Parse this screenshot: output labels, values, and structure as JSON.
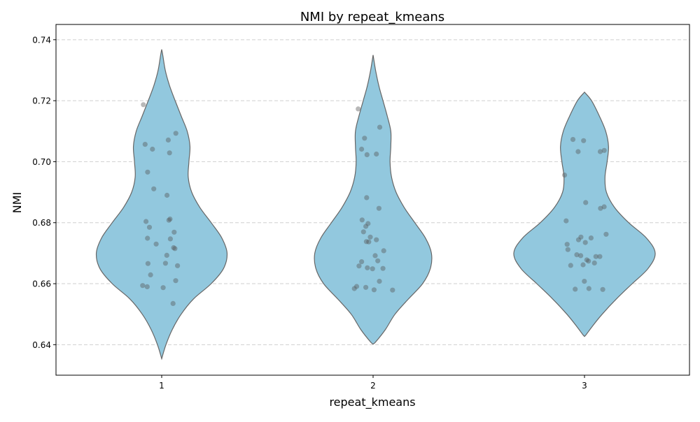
{
  "chart_data": {
    "type": "violin",
    "title": "NMI by repeat_kmeans",
    "xlabel": "repeat_kmeans",
    "ylabel": "NMI",
    "categories": [
      "1",
      "2",
      "3"
    ],
    "ylim": [
      0.63,
      0.745
    ],
    "yticks": [
      "0.64",
      "0.66",
      "0.68",
      "0.70",
      "0.72",
      "0.74"
    ],
    "grid": "horizontal dashed",
    "violin_color": "#92c8de",
    "violin_edge": "#666666",
    "point_color": "#555555",
    "violins": [
      {
        "category": "1",
        "range": [
          0.6354,
          0.7368
        ],
        "profile": [
          [
            0.6354,
            0.0
          ],
          [
            0.64,
            0.012
          ],
          [
            0.645,
            0.03
          ],
          [
            0.65,
            0.055
          ],
          [
            0.655,
            0.09
          ],
          [
            0.66,
            0.14
          ],
          [
            0.665,
            0.175
          ],
          [
            0.67,
            0.185
          ],
          [
            0.675,
            0.17
          ],
          [
            0.68,
            0.14
          ],
          [
            0.685,
            0.108
          ],
          [
            0.69,
            0.085
          ],
          [
            0.695,
            0.075
          ],
          [
            0.7,
            0.077
          ],
          [
            0.705,
            0.08
          ],
          [
            0.71,
            0.072
          ],
          [
            0.715,
            0.055
          ],
          [
            0.72,
            0.038
          ],
          [
            0.725,
            0.022
          ],
          [
            0.73,
            0.01
          ],
          [
            0.735,
            0.003
          ],
          [
            0.7368,
            0.0
          ]
        ],
        "points": [
          0.7187,
          0.7093,
          0.7071,
          0.7057,
          0.7041,
          0.7029,
          0.6966,
          0.6911,
          0.689,
          0.6812,
          0.6808,
          0.6804,
          0.6785,
          0.6769,
          0.6749,
          0.6747,
          0.673,
          0.6718,
          0.6715,
          0.6693,
          0.6667,
          0.6666,
          0.6659,
          0.6629,
          0.661,
          0.6594,
          0.659,
          0.6587,
          0.6535
        ]
      },
      {
        "category": "2",
        "range": [
          0.6402,
          0.735
        ],
        "profile": [
          [
            0.6402,
            0.0
          ],
          [
            0.641,
            0.008
          ],
          [
            0.645,
            0.035
          ],
          [
            0.65,
            0.062
          ],
          [
            0.655,
            0.1
          ],
          [
            0.66,
            0.14
          ],
          [
            0.665,
            0.162
          ],
          [
            0.67,
            0.165
          ],
          [
            0.675,
            0.148
          ],
          [
            0.68,
            0.118
          ],
          [
            0.685,
            0.088
          ],
          [
            0.69,
            0.065
          ],
          [
            0.695,
            0.052
          ],
          [
            0.7,
            0.048
          ],
          [
            0.705,
            0.05
          ],
          [
            0.71,
            0.05
          ],
          [
            0.715,
            0.04
          ],
          [
            0.72,
            0.028
          ],
          [
            0.725,
            0.016
          ],
          [
            0.73,
            0.007
          ],
          [
            0.735,
            0.0
          ]
        ],
        "points": [
          0.7173,
          0.7113,
          0.7077,
          0.7041,
          0.7025,
          0.7023,
          0.6882,
          0.6847,
          0.6809,
          0.6797,
          0.6788,
          0.677,
          0.6753,
          0.6744,
          0.6738,
          0.6737,
          0.6708,
          0.6692,
          0.6675,
          0.6672,
          0.6658,
          0.6652,
          0.665,
          0.6649,
          0.6608,
          0.6591,
          0.6588,
          0.6584,
          0.658,
          0.6579
        ]
      },
      {
        "category": "3",
        "range": [
          0.6427,
          0.7228
        ],
        "profile": [
          [
            0.6427,
            0.0
          ],
          [
            0.6435,
            0.006
          ],
          [
            0.646,
            0.022
          ],
          [
            0.65,
            0.05
          ],
          [
            0.655,
            0.09
          ],
          [
            0.66,
            0.135
          ],
          [
            0.665,
            0.18
          ],
          [
            0.67,
            0.2
          ],
          [
            0.675,
            0.175
          ],
          [
            0.68,
            0.125
          ],
          [
            0.685,
            0.085
          ],
          [
            0.69,
            0.062
          ],
          [
            0.695,
            0.058
          ],
          [
            0.7,
            0.064
          ],
          [
            0.705,
            0.068
          ],
          [
            0.71,
            0.06
          ],
          [
            0.715,
            0.042
          ],
          [
            0.72,
            0.02
          ],
          [
            0.7228,
            0.0
          ]
        ],
        "points": [
          0.7073,
          0.7069,
          0.7037,
          0.7033,
          0.7033,
          0.6956,
          0.6866,
          0.6852,
          0.6847,
          0.6806,
          0.6762,
          0.6753,
          0.675,
          0.6744,
          0.6735,
          0.6729,
          0.6712,
          0.6695,
          0.6692,
          0.6689,
          0.6689,
          0.6678,
          0.6674,
          0.6668,
          0.6662,
          0.666,
          0.6608,
          0.6584,
          0.6582,
          0.6581
        ]
      }
    ]
  }
}
